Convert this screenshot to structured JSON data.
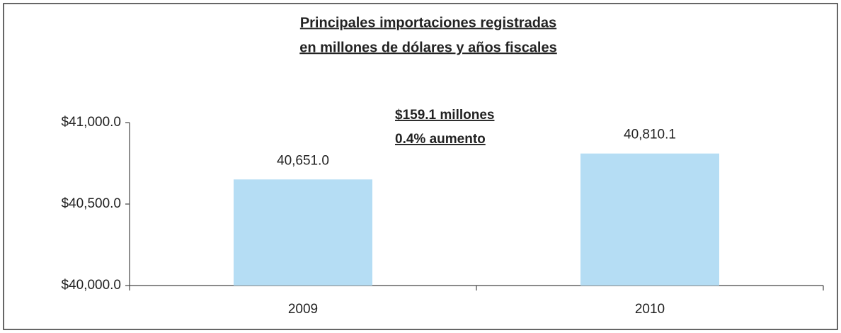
{
  "chart_data": {
    "type": "bar",
    "title": [
      "Principales importaciones registradas",
      "en millones de dólares y años fiscales"
    ],
    "annotations": [
      "$159.1 millones",
      "0.4% aumento"
    ],
    "categories": [
      "2009",
      "2010"
    ],
    "values": [
      40651.0,
      40810.1
    ],
    "value_labels": [
      "40,651.0",
      "40,810.1"
    ],
    "color": "#b5ddf4",
    "ylim": [
      40000,
      41000
    ],
    "yticks": [
      {
        "value": 40000,
        "label": "$40,000.0"
      },
      {
        "value": 40500,
        "label": "$40,500.0"
      },
      {
        "value": 41000,
        "label": "$41,000.0"
      }
    ],
    "grid": false
  }
}
